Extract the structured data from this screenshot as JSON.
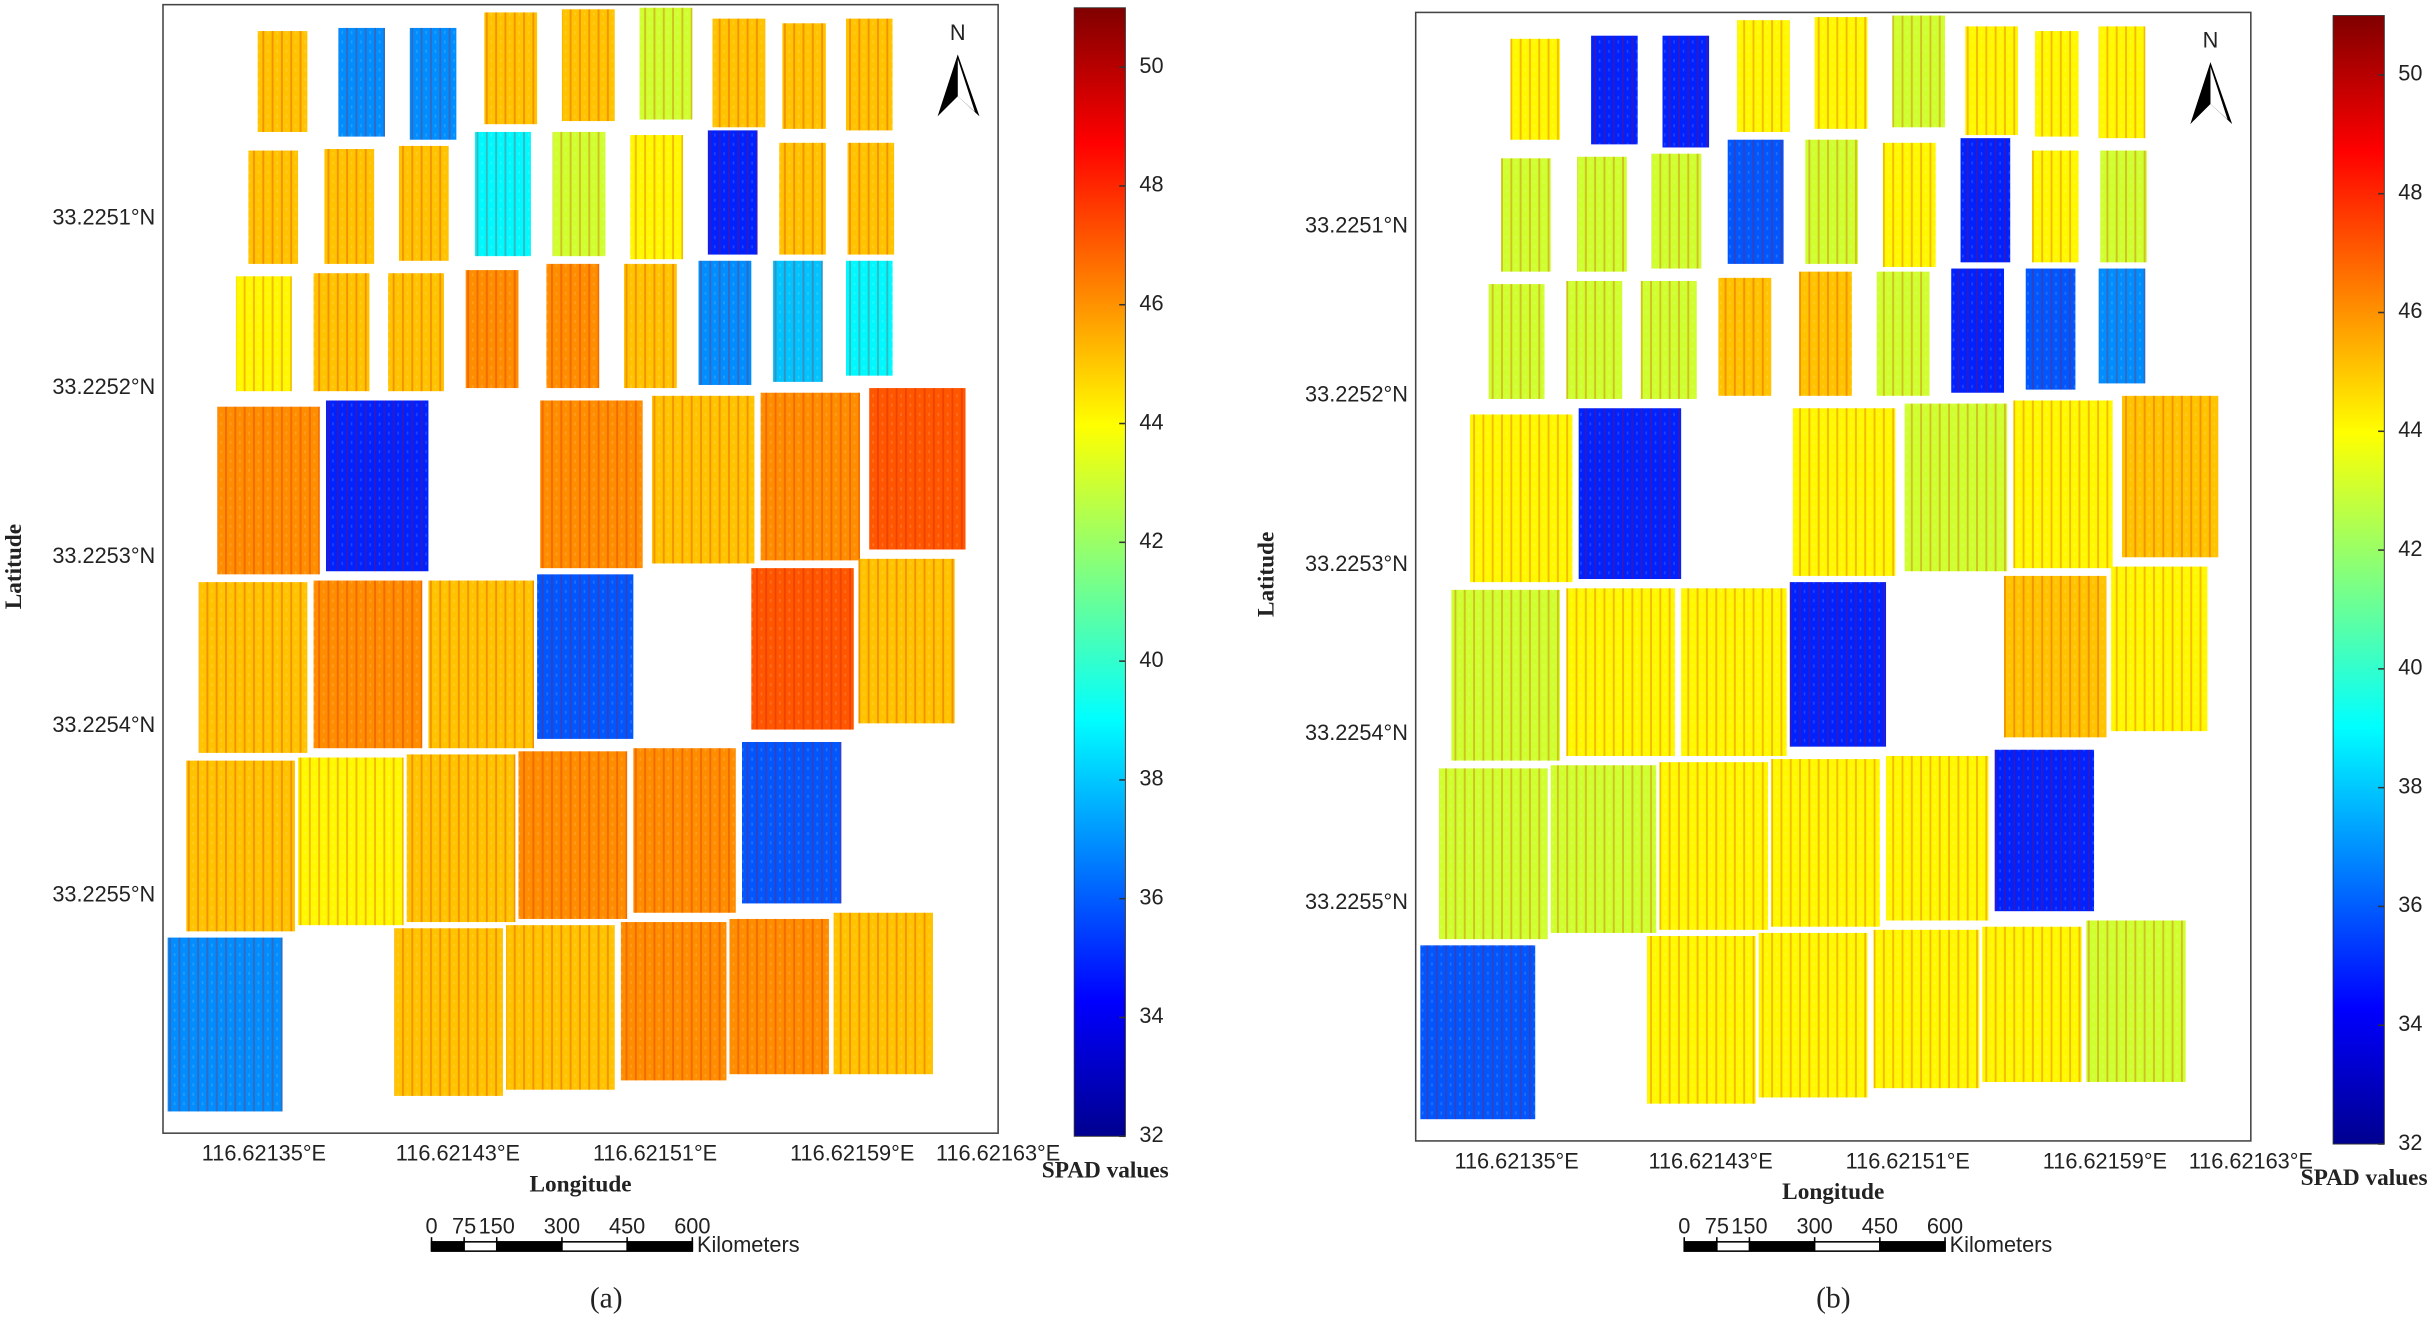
{
  "panels": [
    {
      "caption": "(a)",
      "north": "N",
      "x_label": "Longitude",
      "y_label": "Latitude",
      "lat_labels": [
        "33.2251°N",
        "33.2252°N",
        "33.2253°N",
        "33.2254°N",
        "33.2255°N"
      ],
      "lon_labels": [
        "116.62135°E",
        "116.62143°E",
        "116.62151°E",
        "116.62159°E",
        "116.62163°E"
      ],
      "plot_values": [
        45,
        37,
        37,
        45,
        45,
        43,
        45,
        45,
        45,
        45,
        45,
        45,
        39,
        43,
        44,
        35,
        45,
        45,
        44,
        45,
        45,
        46,
        46,
        45,
        37,
        38,
        39,
        46,
        35,
        46,
        45,
        46,
        47,
        45,
        46,
        45,
        36,
        47,
        45,
        45,
        44,
        45,
        46,
        46,
        36,
        37,
        45,
        45,
        46,
        46,
        45
      ],
      "colorbar": {
        "label": "SPAD values",
        "lim": [
          32,
          51
        ],
        "ticks": [
          32,
          34,
          36,
          38,
          40,
          42,
          44,
          46,
          48,
          50
        ]
      },
      "scale_bar": {
        "ticks": [
          0,
          75,
          150,
          300,
          450,
          600
        ],
        "unit": "Kilometers"
      }
    },
    {
      "caption": "(b)",
      "north": "N",
      "x_label": "Longitude",
      "y_label": "Latitude",
      "lat_labels": [
        "33.2251°N",
        "33.2252°N",
        "33.2253°N",
        "33.2254°N",
        "33.2255°N"
      ],
      "lon_labels": [
        "116.62135°E",
        "116.62143°E",
        "116.62151°E",
        "116.62159°E",
        "116.62163°E"
      ],
      "plot_values": [
        44,
        35,
        35,
        44,
        44,
        43,
        44,
        44,
        44,
        43,
        43,
        43,
        36,
        43,
        44,
        35,
        44,
        43,
        43,
        43,
        43,
        45,
        45,
        43,
        35,
        36,
        37,
        44,
        35,
        44,
        43,
        44,
        45,
        43,
        44,
        44,
        35,
        45,
        44,
        43,
        43,
        44,
        44,
        44,
        35,
        36,
        44,
        44,
        44,
        44,
        43
      ],
      "colorbar": {
        "label": "SPAD values",
        "lim": [
          32,
          51
        ],
        "ticks": [
          32,
          34,
          36,
          38,
          40,
          42,
          44,
          46,
          48,
          50
        ]
      },
      "scale_bar": {
        "ticks": [
          0,
          75,
          150,
          300,
          450,
          600
        ],
        "unit": "Kilometers"
      }
    }
  ]
}
